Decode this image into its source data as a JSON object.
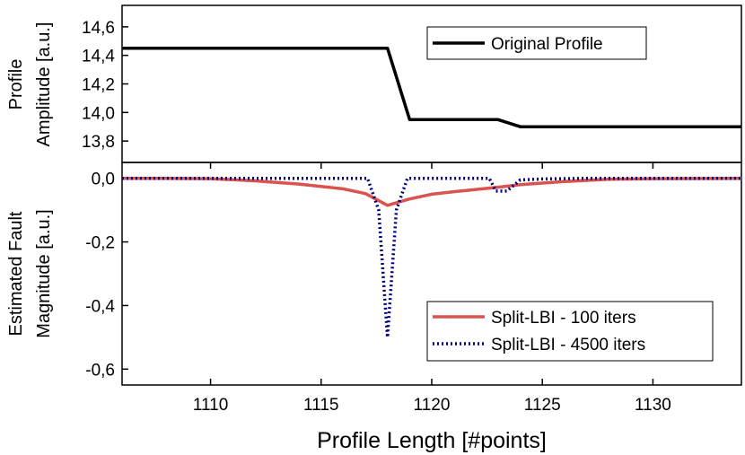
{
  "chart_data": [
    {
      "type": "line",
      "ylabel_lines": [
        "Profile",
        "Amplitude [a.u.]"
      ],
      "xlim": [
        1106,
        1134
      ],
      "ylim": [
        13.65,
        14.75
      ],
      "yticks": [
        13.8,
        14.0,
        14.2,
        14.4,
        14.6
      ],
      "ytick_labels": [
        "13,8",
        "14,0",
        "14,2",
        "14,4",
        "14,6"
      ],
      "legend_position": "top-right",
      "grid": false,
      "series": [
        {
          "name": "Original Profile",
          "color": "#000000",
          "style": "solid",
          "x": [
            1106,
            1118,
            1119,
            1123,
            1124,
            1134
          ],
          "y": [
            14.45,
            14.45,
            13.95,
            13.95,
            13.9,
            13.9
          ]
        }
      ]
    },
    {
      "type": "line",
      "ylabel_lines": [
        "Estimated Fault",
        "Magnitude [a.u.]"
      ],
      "xlabel": "Profile Length [#points]",
      "xlim": [
        1106,
        1134
      ],
      "ylim": [
        -0.65,
        0.05
      ],
      "xticks": [
        1110,
        1115,
        1120,
        1125,
        1130
      ],
      "xtick_labels": [
        "1110",
        "1115",
        "1120",
        "1125",
        "1130"
      ],
      "yticks": [
        0.0,
        -0.2,
        -0.4,
        -0.6
      ],
      "ytick_labels": [
        "0,0",
        "-0,2",
        "-0,4",
        "-0,6"
      ],
      "legend_position": "bottom-right",
      "grid": false,
      "series": [
        {
          "name": "Split-LBI - 100 iters",
          "color": "#d9534f",
          "style": "solid",
          "x": [
            1106,
            1108,
            1110,
            1112,
            1114,
            1116,
            1117,
            1118,
            1119,
            1120,
            1121,
            1122,
            1123,
            1124,
            1126,
            1128,
            1130,
            1134
          ],
          "y": [
            0,
            0,
            -0.001,
            -0.008,
            -0.018,
            -0.033,
            -0.048,
            -0.085,
            -0.065,
            -0.05,
            -0.042,
            -0.035,
            -0.028,
            -0.02,
            -0.01,
            -0.003,
            -0.001,
            0
          ]
        },
        {
          "name": "Split-LBI - 4500 iters",
          "color": "#000080",
          "style": "dotted",
          "x": [
            1106,
            1117.1,
            1117.6,
            1118.0,
            1118.4,
            1118.9,
            1122.6,
            1122.9,
            1123.4,
            1124.0,
            1125,
            1127,
            1134
          ],
          "y": [
            0,
            0,
            -0.1,
            -0.5,
            -0.1,
            0,
            0,
            -0.04,
            -0.04,
            -0.005,
            -0.002,
            0,
            0
          ]
        }
      ]
    }
  ]
}
